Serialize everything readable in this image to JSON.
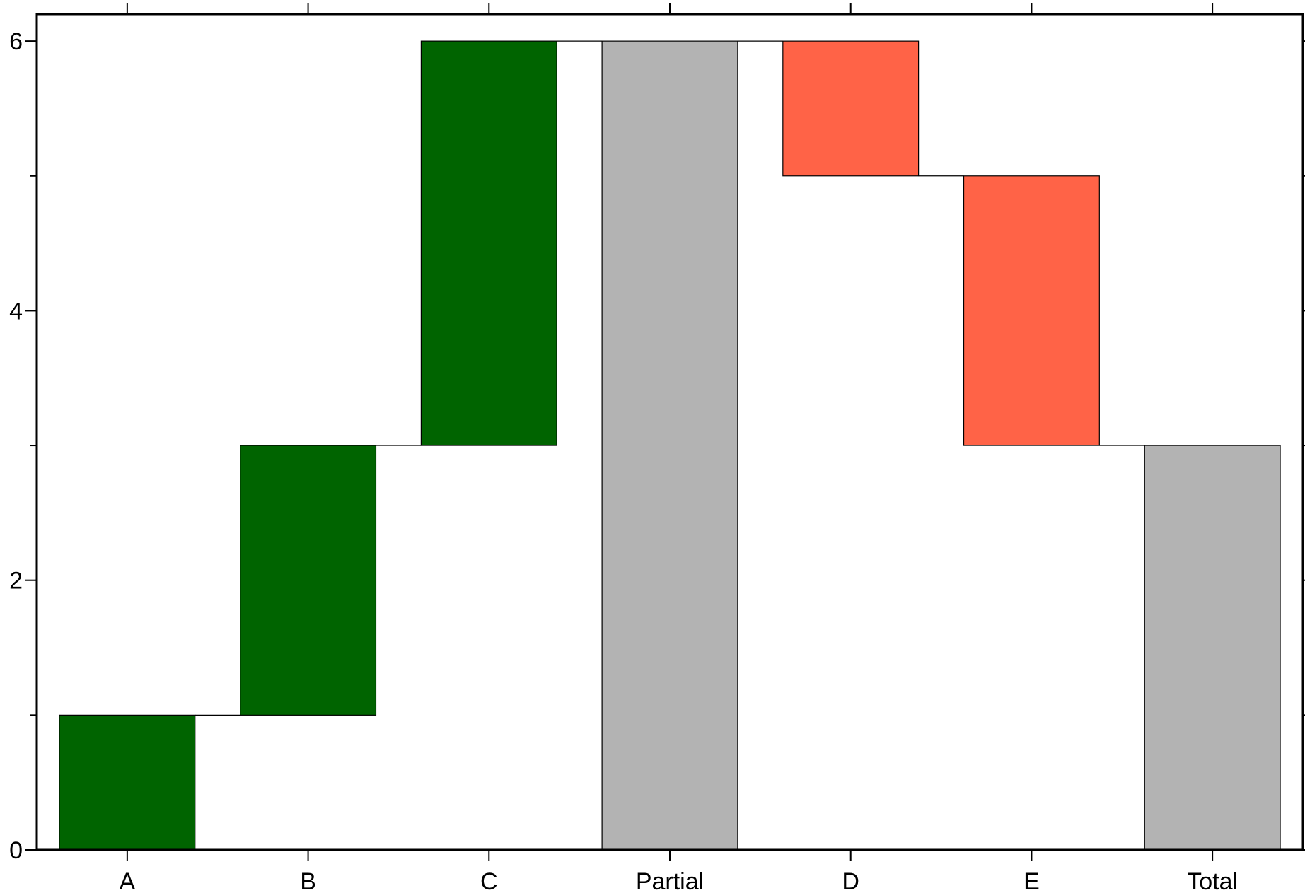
{
  "chart_data": {
    "type": "bar",
    "subtype": "waterfall",
    "categories": [
      "A",
      "B",
      "C",
      "Partial",
      "D",
      "E",
      "Total"
    ],
    "bars": [
      {
        "label": "A",
        "base": 0,
        "top": 1,
        "kind": "increase"
      },
      {
        "label": "B",
        "base": 1,
        "top": 3,
        "kind": "increase"
      },
      {
        "label": "C",
        "base": 3,
        "top": 6,
        "kind": "increase"
      },
      {
        "label": "Partial",
        "base": 0,
        "top": 6,
        "kind": "total"
      },
      {
        "label": "D",
        "base": 5,
        "top": 6,
        "kind": "decrease"
      },
      {
        "label": "E",
        "base": 3,
        "top": 5,
        "kind": "decrease"
      },
      {
        "label": "Total",
        "base": 0,
        "top": 3,
        "kind": "total"
      }
    ],
    "ylim": [
      0,
      6.2
    ],
    "yticks_major": [
      0,
      2,
      4,
      6
    ],
    "yticks_minor": [
      1,
      3,
      5
    ],
    "title": "",
    "xlabel": "",
    "ylabel": "",
    "grid": false,
    "connectors": true,
    "colors": {
      "increase": "#006400",
      "decrease": "#ff6347",
      "total": "#b3b3b3"
    }
  }
}
